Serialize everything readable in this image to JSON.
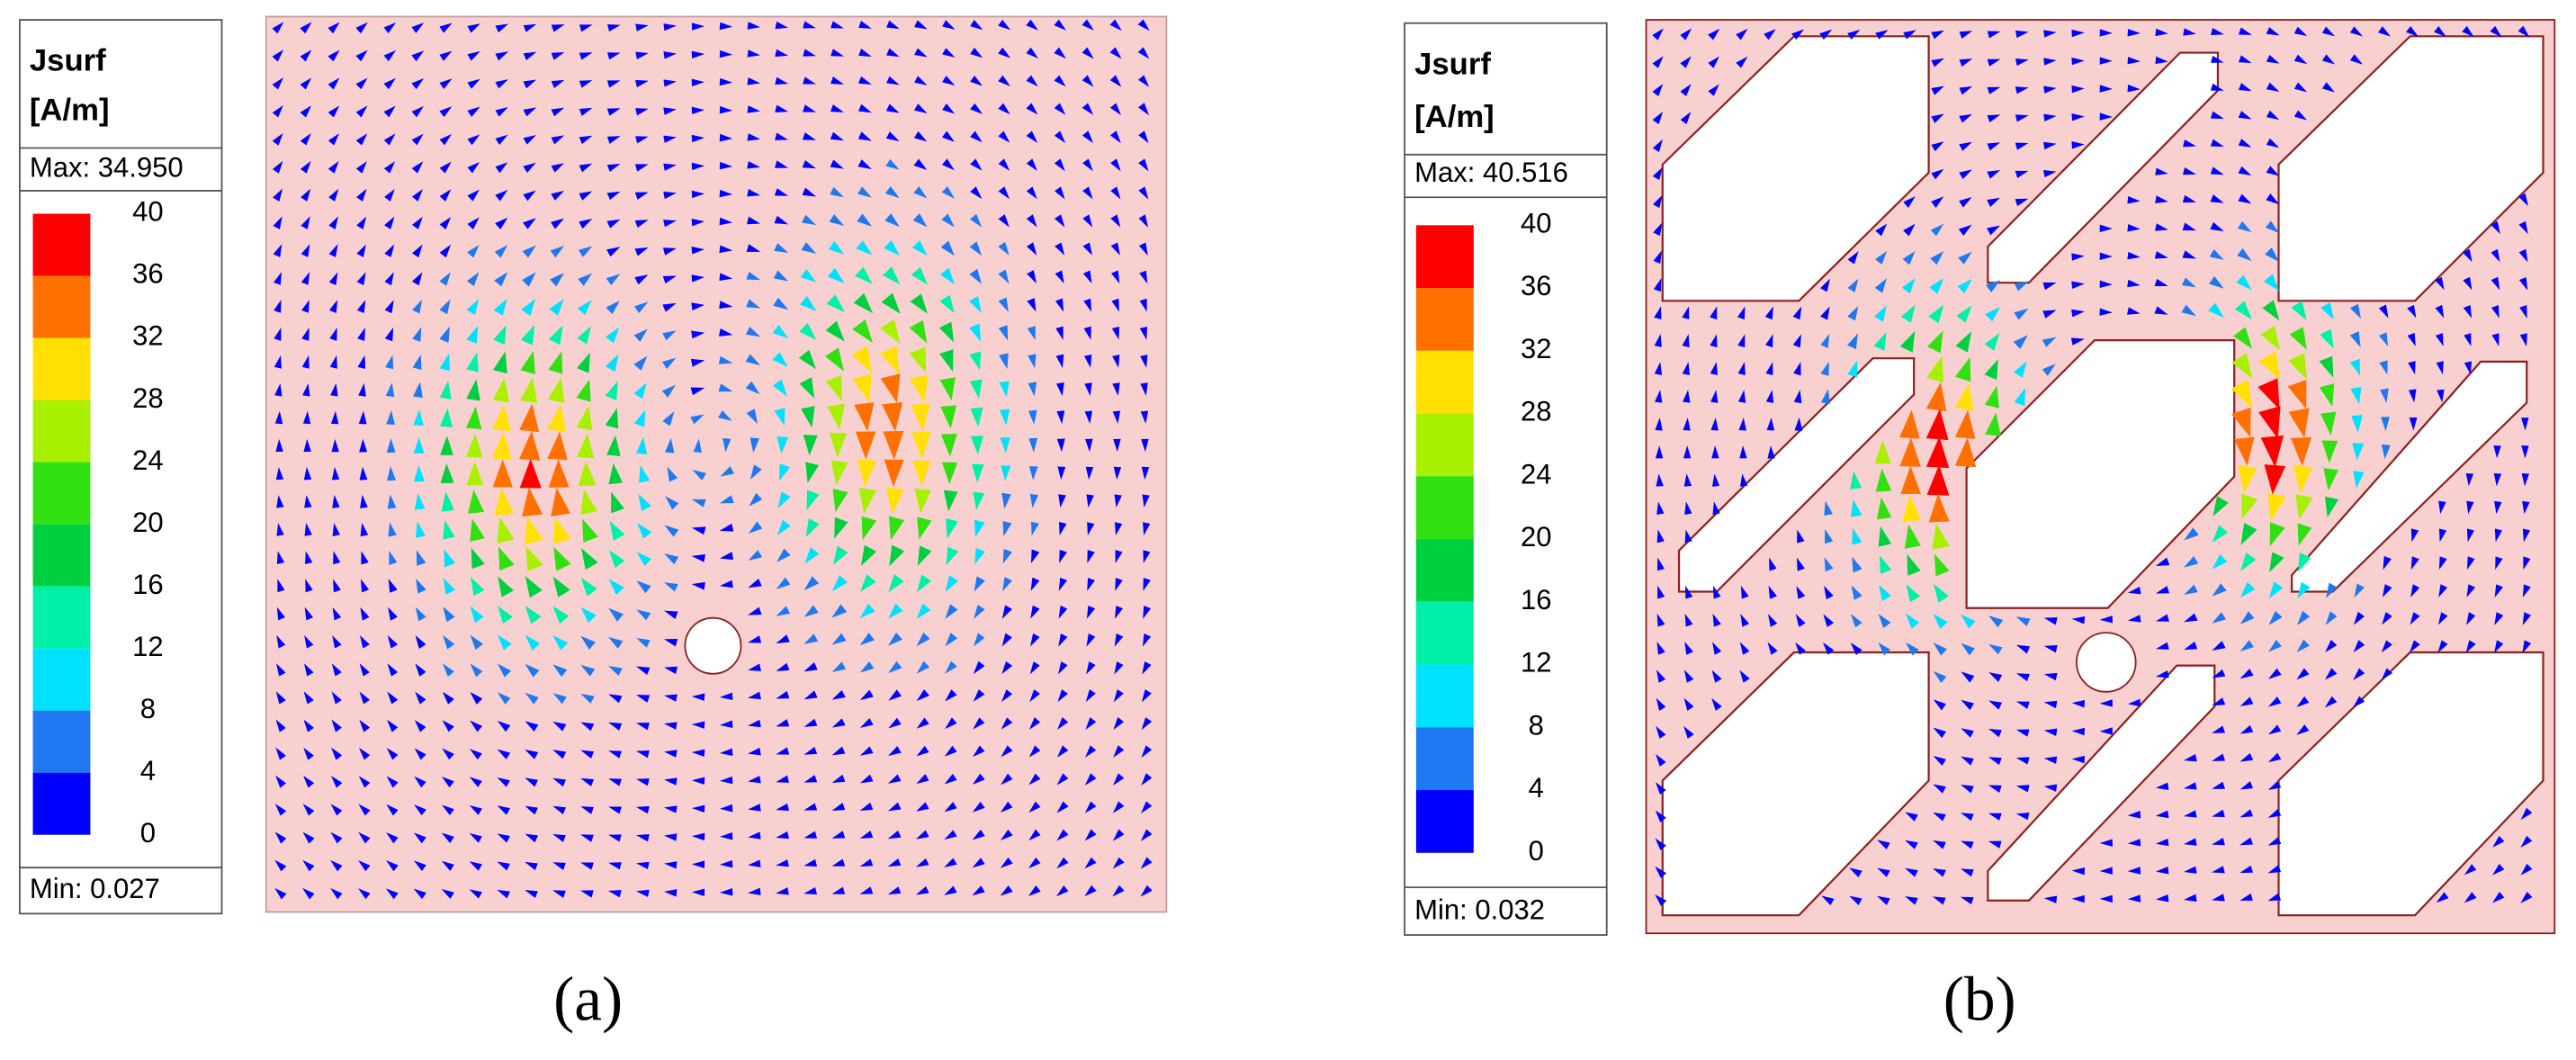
{
  "colorbar_colors": [
    "#ff0000",
    "#ff7000",
    "#ffe000",
    "#a8f000",
    "#30e010",
    "#00d040",
    "#00f0a8",
    "#00e0ff",
    "#1e78f0",
    "#0000ff"
  ],
  "panels": [
    {
      "legend": {
        "title": "Jsurf",
        "unit": "[A/m]",
        "max": "Max: 34.950",
        "min": "Min:  0.027",
        "scale_labels": [
          "40",
          "36",
          "32",
          "28",
          "24",
          "20",
          "16",
          "12",
          "8",
          "4",
          "0"
        ]
      },
      "caption": "(a)"
    },
    {
      "legend": {
        "title": "Jsurf",
        "unit": "[A/m]",
        "max": "Max: 40.516",
        "min": "Min:  0.032",
        "scale_labels": [
          "40",
          "36",
          "32",
          "28",
          "24",
          "20",
          "16",
          "12",
          "8",
          "4",
          "0"
        ]
      },
      "caption": "(b)"
    }
  ]
}
